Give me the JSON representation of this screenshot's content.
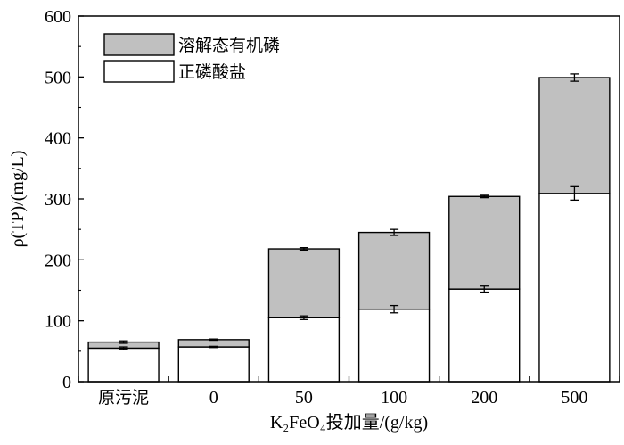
{
  "chart_data": {
    "type": "bar",
    "stacked": true,
    "title": "",
    "xlabel": "K₂FeO₄投加量/(g/kg)",
    "ylabel": "ρ(TP)/(mg/L)",
    "categories": [
      "原污泥",
      "0",
      "50",
      "100",
      "200",
      "500"
    ],
    "ylim": [
      0,
      600
    ],
    "yticks": [
      0,
      100,
      200,
      300,
      400,
      500,
      600
    ],
    "grid": false,
    "legend_position": "top-left",
    "series": [
      {
        "name": "正磷酸盐",
        "color": "#ffffff",
        "values": [
          55,
          57,
          105,
          119,
          152,
          309
        ],
        "error": [
          2,
          1,
          3,
          6,
          5,
          11
        ]
      },
      {
        "name": "溶解态有机磷",
        "color": "#c0c0c0",
        "values": [
          10,
          12,
          113,
          126,
          152,
          190
        ],
        "error": [
          2,
          1,
          2,
          5,
          2,
          6
        ]
      }
    ]
  }
}
